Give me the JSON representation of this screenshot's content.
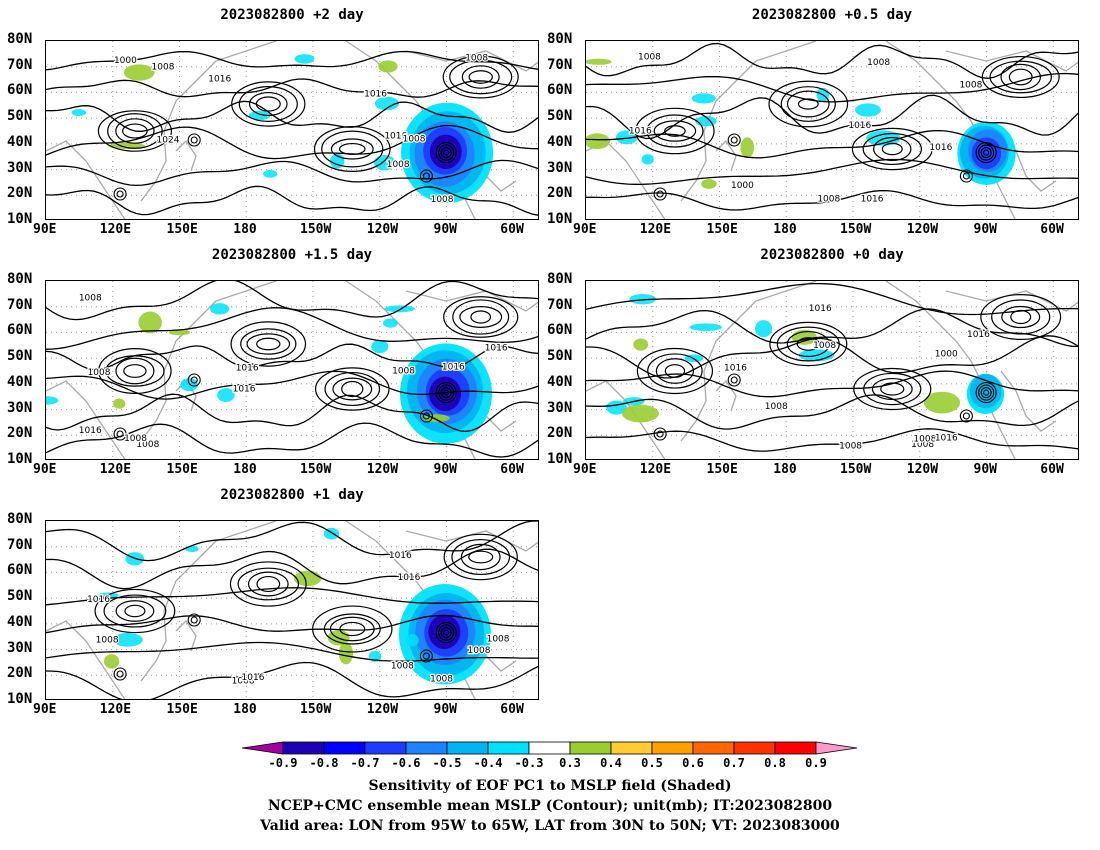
{
  "panels": [
    {
      "title": "2023082800 +2 day",
      "col": 0,
      "row": 0,
      "storm": "strong",
      "contour_labels": [
        "1008",
        "1016",
        "1008",
        "1008",
        "1016",
        "1000",
        "1024",
        "1008",
        "1008",
        "1016"
      ]
    },
    {
      "title": "2023082800 +0.5 day",
      "col": 1,
      "row": 0,
      "storm": "medium",
      "contour_labels": [
        "1008",
        "1016",
        "1008",
        "1016",
        "1008",
        "1000",
        "1016",
        "1016",
        "1008"
      ]
    },
    {
      "title": "2023082800 +1.5 day",
      "col": 0,
      "row": 1,
      "storm": "strong",
      "contour_labels": [
        "1008",
        "1016",
        "1008",
        "1008",
        "1016",
        "1016",
        "1016",
        "1008",
        "1016",
        "1008"
      ]
    },
    {
      "title": "2023082800 +0 day",
      "col": 1,
      "row": 1,
      "storm": "weak",
      "contour_labels": [
        "1008",
        "1016",
        "1008",
        "1016",
        "1008",
        "1000",
        "1016",
        "1016",
        "1008",
        "1008"
      ]
    },
    {
      "title": "2023082800 +1 day",
      "col": 0,
      "row": 2,
      "storm": "strong",
      "contour_labels": [
        "1008",
        "1016",
        "1016",
        "1016",
        "1008",
        "1008",
        "1016",
        "1008",
        "1008",
        "1008"
      ]
    }
  ],
  "lat_labels": [
    "80N",
    "70N",
    "60N",
    "50N",
    "40N",
    "30N",
    "20N",
    "10N"
  ],
  "lon_labels": [
    "90E",
    "120E",
    "150E",
    "180",
    "150W",
    "120W",
    "90W",
    "60W"
  ],
  "colorbar": {
    "colors": [
      "#a000a0",
      "#1e00b4",
      "#0000ff",
      "#1e3cff",
      "#1e82ff",
      "#00b4f0",
      "#00e1ff",
      "#ffffff",
      "#9acd32",
      "#ffcc33",
      "#ffa000",
      "#ff6600",
      "#ff3200",
      "#ff0000",
      "#ff99cc"
    ],
    "labels": [
      "-0.9",
      "-0.8",
      "-0.7",
      "-0.6",
      "-0.5",
      "-0.4",
      "-0.3",
      "0.3",
      "0.4",
      "0.5",
      "0.6",
      "0.7",
      "0.8",
      "0.9"
    ]
  },
  "caption": {
    "line1": "Sensitivity of EOF PC1 to MSLP field (Shaded)",
    "line2": "NCEP+CMC ensemble mean MSLP (Contour); unit(mb); IT:2023082800",
    "line3": "Valid area: LON from 95W to 65W, LAT from 30N to 50N; VT: 2023083000"
  }
}
